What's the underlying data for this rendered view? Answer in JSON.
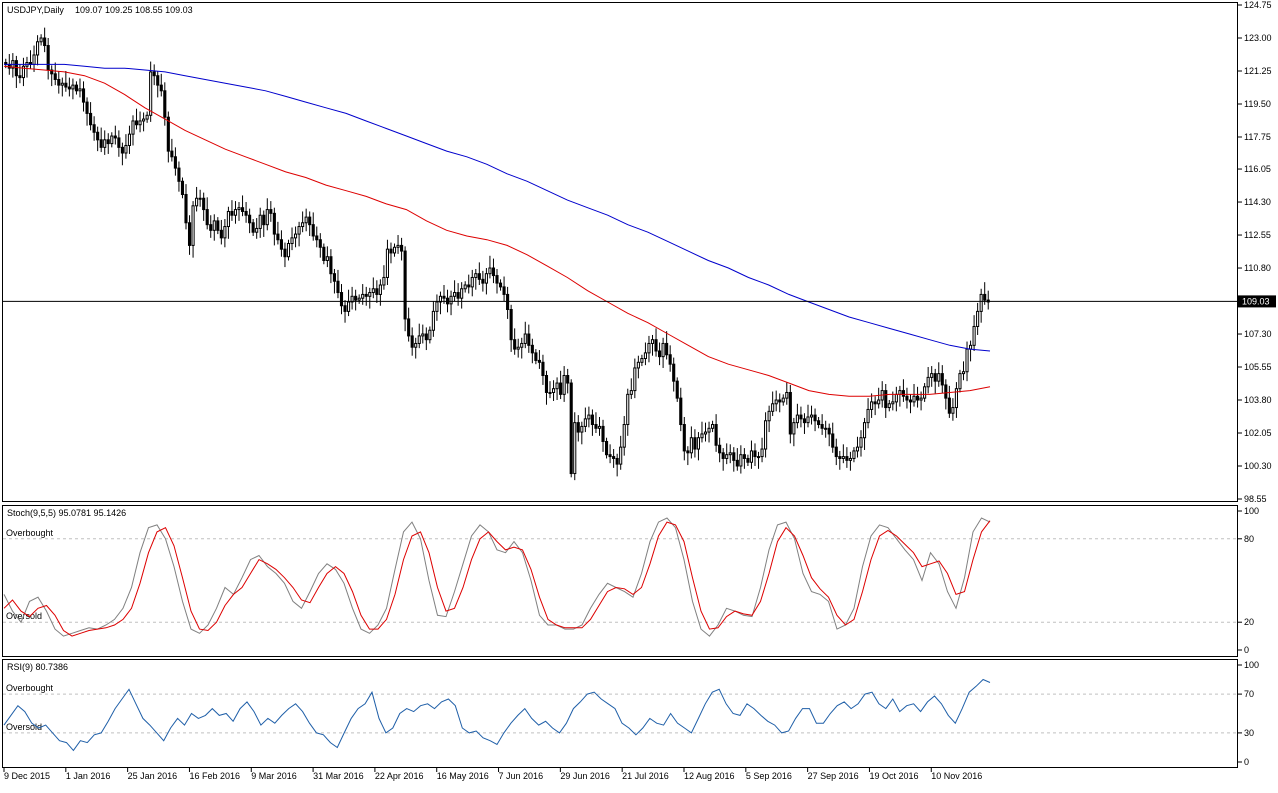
{
  "chart_data": [
    {
      "type": "candlestick",
      "title": "USDJPY,Daily",
      "ohlc_label": "109.07 109.25 108.55 109.03",
      "y_ticks": [
        "124.75",
        "123.00",
        "121.25",
        "119.50",
        "117.75",
        "116.05",
        "114.30",
        "112.55",
        "110.80",
        "109.03",
        "107.30",
        "105.55",
        "103.80",
        "102.05",
        "100.30",
        "98.55"
      ],
      "ylim": [
        98.55,
        124.75
      ],
      "current_price": 109.03,
      "current_price_label": "109.03",
      "x_ticks": [
        "9 Dec 2015",
        "1 Jan 2016",
        "25 Jan 2016",
        "16 Feb 2016",
        "9 Mar 2016",
        "31 Mar 2016",
        "22 Apr 2016",
        "16 May 2016",
        "7 Jun 2016",
        "29 Jun 2016",
        "21 Jul 2016",
        "12 Aug 2016",
        "5 Sep 2016",
        "27 Sep 2016",
        "19 Oct 2016",
        "10 Nov 2016"
      ],
      "close": [
        121.6,
        121.4,
        121.8,
        121.0,
        120.9,
        121.5,
        121.7,
        121.6,
        122.1,
        122.8,
        123.0,
        122.6,
        121.3,
        121.1,
        120.8,
        120.5,
        120.6,
        120.4,
        120.3,
        120.5,
        120.2,
        120.3,
        119.6,
        119.0,
        118.4,
        118.0,
        117.6,
        117.2,
        117.6,
        117.4,
        117.8,
        117.7,
        117.2,
        116.9,
        117.3,
        117.9,
        118.6,
        118.4,
        118.6,
        118.7,
        118.9,
        121.2,
        121.0,
        120.5,
        120.2,
        118.8,
        117.0,
        116.7,
        116.1,
        115.4,
        114.7,
        113.2,
        112.0,
        114.1,
        114.5,
        114.5,
        113.9,
        113.1,
        112.8,
        113.3,
        112.8,
        112.4,
        113.0,
        113.8,
        113.6,
        113.9,
        114.0,
        113.8,
        113.6,
        113.2,
        112.7,
        112.9,
        113.6,
        113.1,
        113.9,
        113.7,
        112.6,
        112.3,
        111.8,
        111.4,
        112.1,
        112.4,
        112.6,
        113.0,
        113.2,
        113.5,
        113.1,
        112.5,
        112.3,
        111.9,
        111.2,
        111.4,
        110.5,
        110.1,
        109.5,
        108.8,
        108.5,
        109.0,
        109.3,
        109.1,
        109.2,
        109.4,
        109.3,
        109.5,
        109.7,
        109.4,
        109.9,
        110.3,
        111.8,
        111.6,
        111.9,
        112.0,
        111.7,
        108.1,
        107.2,
        106.6,
        106.8,
        107.2,
        107.3,
        107.0,
        107.5,
        108.5,
        109.0,
        109.3,
        109.2,
        108.9,
        109.3,
        109.5,
        109.2,
        109.7,
        109.9,
        109.8,
        110.3,
        110.5,
        110.2,
        110.0,
        110.5,
        110.8,
        110.4,
        110.0,
        109.8,
        109.4,
        108.6,
        107.0,
        106.5,
        106.6,
        106.8,
        107.3,
        106.7,
        106.3,
        105.9,
        105.8,
        105.1,
        104.2,
        104.2,
        104.4,
        104.7,
        104.1,
        105.1,
        104.7,
        99.9,
        102.6,
        102.1,
        102.4,
        102.8,
        103.0,
        102.5,
        102.3,
        102.4,
        101.6,
        100.9,
        100.8,
        100.7,
        100.4,
        101.3,
        102.5,
        104.1,
        104.3,
        105.5,
        105.8,
        106.0,
        106.3,
        106.8,
        107.0,
        106.4,
        106.1,
        106.8,
        106.2,
        105.7,
        104.8,
        103.9,
        102.5,
        101.1,
        101.0,
        101.8,
        101.2,
        101.8,
        102.0,
        102.1,
        102.3,
        102.5,
        101.4,
        101.0,
        100.7,
        100.9,
        101.0,
        100.6,
        100.3,
        100.9,
        100.7,
        100.5,
        101.1,
        100.8,
        100.8,
        101.2,
        102.7,
        103.2,
        103.6,
        103.8,
        103.7,
        103.9,
        104.2,
        102.0,
        102.6,
        103.0,
        102.8,
        102.6,
        102.9,
        103.0,
        102.7,
        102.5,
        102.3,
        102.3,
        102.0,
        101.3,
        100.8,
        100.7,
        100.8,
        100.6,
        100.7,
        101.1,
        101.3,
        101.8,
        102.6,
        103.3,
        103.7,
        103.6,
        103.8,
        104.3,
        103.4,
        103.6,
        103.7,
        104.1,
        104.3,
        104.0,
        103.8,
        103.7,
        104.0,
        103.8,
        103.9,
        104.5,
        105.0,
        105.2,
        104.8,
        105.2,
        104.6,
        103.9,
        103.1,
        103.4,
        104.4,
        105.2,
        105.3,
        106.5,
        106.7,
        107.7,
        108.5,
        109.4,
        109.1,
        109.0
      ],
      "high_wick_extra": 0.5,
      "sma_50_label": "",
      "sma_100_label": "",
      "sma_red": [
        121.5,
        121.4,
        121.3,
        121.2,
        121.0,
        120.6,
        120.0,
        119.3,
        118.7,
        118.1,
        117.6,
        117.1,
        116.7,
        116.3,
        115.9,
        115.6,
        115.2,
        114.9,
        114.6,
        114.2,
        113.9,
        113.3,
        112.8,
        112.5,
        112.3,
        112.0,
        111.5,
        110.9,
        110.3,
        109.6,
        109.0,
        108.4,
        107.9,
        107.3,
        106.7,
        106.1,
        105.7,
        105.4,
        105.1,
        104.7,
        104.3,
        104.1,
        104.0,
        104.0,
        104.1,
        104.1,
        104.1,
        104.2,
        104.3,
        104.5
      ],
      "sma_blue": [
        121.6,
        121.6,
        121.6,
        121.6,
        121.5,
        121.4,
        121.4,
        121.3,
        121.2,
        121.0,
        120.8,
        120.6,
        120.4,
        120.2,
        119.9,
        119.6,
        119.3,
        119.0,
        118.6,
        118.2,
        117.8,
        117.4,
        117.0,
        116.7,
        116.3,
        115.8,
        115.4,
        114.9,
        114.4,
        114.0,
        113.6,
        113.1,
        112.7,
        112.2,
        111.7,
        111.2,
        110.8,
        110.3,
        109.9,
        109.4,
        109.0,
        108.6,
        108.2,
        107.9,
        107.6,
        107.3,
        107.0,
        106.7,
        106.5,
        106.4
      ]
    },
    {
      "type": "line",
      "title": "Stoch(9,5,5) 95.0781 95.1426",
      "levels": [
        {
          "value": 80,
          "label": "Overbought"
        },
        {
          "value": 20,
          "label": "Oversold"
        }
      ],
      "y_ticks": [
        "100",
        "80",
        "20",
        "0"
      ],
      "ylim": [
        0,
        100
      ],
      "series": [
        {
          "values": [
            40,
            28,
            20,
            35,
            38,
            28,
            15,
            10,
            12,
            14,
            16,
            15,
            18,
            22,
            30,
            45,
            70,
            88,
            90,
            80,
            60,
            35,
            15,
            12,
            18,
            30,
            45,
            40,
            52,
            65,
            68,
            60,
            55,
            48,
            35,
            30,
            42,
            55,
            62,
            58,
            48,
            30,
            15,
            12,
            18,
            30,
            58,
            85,
            92,
            80,
            50,
            25,
            24,
            42,
            62,
            82,
            90,
            85,
            72,
            70,
            78,
            70,
            50,
            25,
            18,
            18,
            15,
            15,
            18,
            30,
            40,
            48,
            45,
            42,
            38,
            55,
            78,
            92,
            95,
            88,
            65,
            35,
            15,
            10,
            18,
            30,
            28,
            25,
            24,
            45,
            72,
            90,
            92,
            80,
            55,
            42,
            40,
            35,
            15,
            18,
            30,
            60,
            82,
            90,
            88,
            80,
            72,
            65,
            50,
            70,
            62,
            42,
            30,
            52,
            85,
            95,
            92
          ]
        },
        {
          "values": [
            30,
            36,
            28,
            24,
            30,
            32,
            25,
            14,
            10,
            12,
            14,
            15,
            16,
            18,
            22,
            30,
            48,
            70,
            85,
            88,
            75,
            52,
            28,
            15,
            14,
            20,
            32,
            40,
            45,
            55,
            65,
            62,
            58,
            52,
            45,
            36,
            34,
            45,
            55,
            60,
            55,
            42,
            25,
            15,
            15,
            22,
            40,
            65,
            82,
            85,
            70,
            45,
            28,
            30,
            45,
            65,
            80,
            85,
            78,
            72,
            74,
            72,
            58,
            38,
            22,
            18,
            16,
            16,
            16,
            22,
            32,
            42,
            45,
            44,
            40,
            45,
            62,
            82,
            92,
            90,
            78,
            52,
            28,
            15,
            16,
            24,
            28,
            26,
            25,
            35,
            55,
            78,
            88,
            82,
            68,
            52,
            44,
            38,
            25,
            18,
            22,
            42,
            65,
            82,
            86,
            82,
            76,
            70,
            60,
            62,
            64,
            55,
            40,
            42,
            65,
            85,
            93
          ]
        }
      ]
    },
    {
      "type": "line",
      "title": "RSI(9) 80.7386",
      "levels": [
        {
          "value": 70,
          "label": "Overbought"
        },
        {
          "value": 30,
          "label": "Oversold"
        }
      ],
      "y_ticks": [
        "100",
        "70",
        "30",
        "0"
      ],
      "ylim": [
        0,
        100
      ],
      "series": [
        {
          "values": [
            38,
            48,
            58,
            52,
            40,
            35,
            38,
            30,
            22,
            20,
            12,
            22,
            20,
            28,
            30,
            42,
            55,
            65,
            75,
            60,
            45,
            38,
            30,
            22,
            35,
            45,
            38,
            50,
            45,
            48,
            55,
            48,
            50,
            42,
            55,
            62,
            52,
            38,
            45,
            40,
            48,
            55,
            60,
            52,
            40,
            30,
            28,
            20,
            15,
            30,
            45,
            55,
            60,
            72,
            45,
            30,
            35,
            50,
            55,
            52,
            58,
            60,
            55,
            62,
            65,
            58,
            35,
            30,
            32,
            25,
            22,
            18,
            30,
            40,
            48,
            55,
            45,
            38,
            42,
            35,
            30,
            40,
            55,
            62,
            70,
            72,
            65,
            60,
            55,
            40,
            35,
            28,
            35,
            45,
            40,
            38,
            50,
            40,
            35,
            30,
            45,
            60,
            72,
            75,
            60,
            50,
            48,
            60,
            55,
            48,
            42,
            38,
            30,
            32,
            45,
            55,
            55,
            40,
            40,
            50,
            58,
            62,
            55,
            60,
            70,
            72,
            60,
            55,
            65,
            52,
            58,
            60,
            52,
            62,
            68,
            60,
            48,
            40,
            55,
            72,
            78,
            85,
            82
          ]
        }
      ]
    }
  ]
}
